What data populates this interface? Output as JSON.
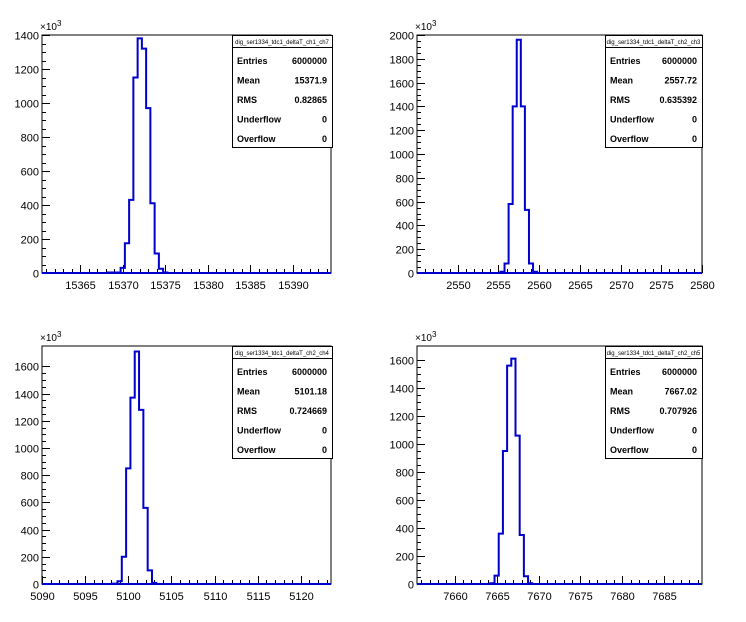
{
  "chart_data": [
    {
      "type": "bar",
      "title": "",
      "xlabel": "",
      "ylabel": "",
      "y_multiplier": "×10",
      "y_exponent": "3",
      "xlim": [
        15360.5,
        15394.5
      ],
      "ylim": [
        0,
        1400
      ],
      "xticks": [
        15365,
        15370,
        15375,
        15380,
        15385,
        15390
      ],
      "yticks": [
        0,
        200,
        400,
        600,
        800,
        1000,
        1200,
        1400
      ],
      "bin_width": 0.5,
      "x": [
        15367.5,
        15368,
        15368.5,
        15369,
        15369.5,
        15370,
        15370.5,
        15371,
        15371.5,
        15372,
        15372.5,
        15373,
        15373.5,
        15374,
        15374.5,
        15375
      ],
      "values": [
        0,
        0,
        3,
        3,
        3,
        30,
        175,
        430,
        1150,
        1380,
        1320,
        970,
        410,
        115,
        25,
        3
      ],
      "stats": {
        "name": "dig_ser1334_tdc1_deltaT_ch1_ch7",
        "rows": [
          {
            "label": "Entries",
            "value": "6000000"
          },
          {
            "label": "Mean",
            "value": "15371.9"
          },
          {
            "label": "RMS",
            "value": "0.82865"
          },
          {
            "label": "Underflow",
            "value": "0"
          },
          {
            "label": "Overflow",
            "value": "0"
          }
        ]
      }
    },
    {
      "type": "bar",
      "title": "",
      "xlabel": "",
      "ylabel": "",
      "y_multiplier": "×10",
      "y_exponent": "3",
      "xlim": [
        2545,
        2580
      ],
      "ylim": [
        0,
        2000
      ],
      "xticks": [
        2550,
        2555,
        2560,
        2565,
        2570,
        2575,
        2580
      ],
      "yticks": [
        0,
        200,
        400,
        600,
        800,
        1000,
        1200,
        1400,
        1600,
        1800,
        2000
      ],
      "bin_width": 0.5,
      "x": [
        2555.5,
        2556,
        2556.5,
        2557,
        2557.5,
        2558,
        2558.5,
        2559,
        2559.5
      ],
      "values": [
        10,
        80,
        580,
        1400,
        1960,
        1400,
        530,
        80,
        10
      ],
      "stats": {
        "name": "dig_ser1334_tdc1_deltaT_ch2_ch3",
        "rows": [
          {
            "label": "Entries",
            "value": "6000000"
          },
          {
            "label": "Mean",
            "value": "2557.72"
          },
          {
            "label": "RMS",
            "value": "0.635392"
          },
          {
            "label": "Underflow",
            "value": "0"
          },
          {
            "label": "Overflow",
            "value": "0"
          }
        ]
      }
    },
    {
      "type": "bar",
      "title": "",
      "xlabel": "",
      "ylabel": "",
      "y_multiplier": "×10",
      "y_exponent": "3",
      "xlim": [
        5090,
        5123.5
      ],
      "ylim": [
        0,
        1750
      ],
      "xticks": [
        5090,
        5095,
        5100,
        5105,
        5110,
        5115,
        5120
      ],
      "yticks": [
        0,
        200,
        400,
        600,
        800,
        1000,
        1200,
        1400,
        1600
      ],
      "bin_width": 0.5,
      "x": [
        5098.5,
        5099,
        5099.5,
        5100,
        5100.5,
        5101,
        5101.5,
        5102,
        5102.5,
        5103,
        5103.5
      ],
      "values": [
        3,
        20,
        200,
        850,
        1370,
        1710,
        1280,
        560,
        100,
        8,
        0
      ],
      "stats": {
        "name": "dig_ser1334_tdc1_deltaT_ch2_ch4",
        "rows": [
          {
            "label": "Entries",
            "value": "6000000"
          },
          {
            "label": "Mean",
            "value": "5101.18"
          },
          {
            "label": "RMS",
            "value": "0.724669"
          },
          {
            "label": "Underflow",
            "value": "0"
          },
          {
            "label": "Overflow",
            "value": "0"
          }
        ]
      }
    },
    {
      "type": "bar",
      "title": "",
      "xlabel": "",
      "ylabel": "",
      "y_multiplier": "×10",
      "y_exponent": "3",
      "xlim": [
        7655.5,
        7689.5
      ],
      "ylim": [
        0,
        1700
      ],
      "xticks": [
        7660,
        7665,
        7670,
        7675,
        7680,
        7685
      ],
      "yticks": [
        0,
        200,
        400,
        600,
        800,
        1000,
        1200,
        1400,
        1600
      ],
      "bin_width": 0.5,
      "x": [
        7664.5,
        7665,
        7665.5,
        7666,
        7666.5,
        7667,
        7667.5,
        7668,
        7668.5,
        7669
      ],
      "values": [
        5,
        60,
        360,
        950,
        1560,
        1610,
        1060,
        350,
        55,
        5
      ],
      "stats": {
        "name": "dig_ser1334_tdc1_deltaT_ch2_ch5",
        "rows": [
          {
            "label": "Entries",
            "value": "6000000"
          },
          {
            "label": "Mean",
            "value": "7667.02"
          },
          {
            "label": "RMS",
            "value": "0.707926"
          },
          {
            "label": "Underflow",
            "value": "0"
          },
          {
            "label": "Overflow",
            "value": "0"
          }
        ]
      }
    }
  ]
}
